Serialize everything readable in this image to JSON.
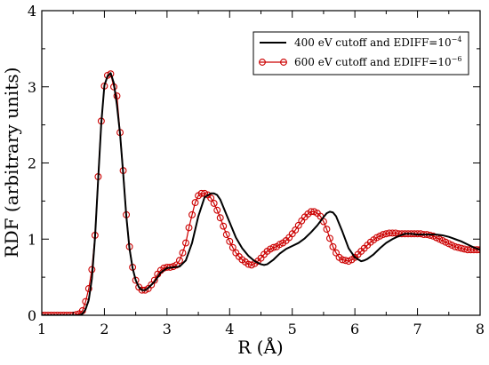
{
  "chart_data": {
    "type": "line",
    "title": "",
    "xlabel": "R (Å)",
    "ylabel": "RDF (arbitrary units)",
    "xlim": [
      1,
      8
    ],
    "ylim": [
      0,
      4
    ],
    "xticks": [
      "1",
      "2",
      "3",
      "4",
      "5",
      "6",
      "7",
      "8"
    ],
    "yticks": [
      "0",
      "1",
      "2",
      "3",
      "4"
    ],
    "grid": false,
    "legend_position": "top-right",
    "legend": {
      "items": [
        {
          "text": "400 eV cutoff and EDIFF=10",
          "sup": "−4"
        },
        {
          "text": "600 eV cutoff and EDIFF=10",
          "sup": "−6"
        }
      ]
    },
    "series": [
      {
        "name": "400 eV cutoff and EDIFF=10^-4",
        "color": "#000000",
        "style": "line",
        "x": [
          1.0,
          1.6,
          1.65,
          1.7,
          1.75,
          1.8,
          1.85,
          1.9,
          1.95,
          2.0,
          2.05,
          2.1,
          2.15,
          2.2,
          2.25,
          2.3,
          2.35,
          2.4,
          2.45,
          2.5,
          2.55,
          2.6,
          2.65,
          2.7,
          2.8,
          2.9,
          3.0,
          3.1,
          3.2,
          3.3,
          3.4,
          3.5,
          3.6,
          3.7,
          3.75,
          3.8,
          3.85,
          3.9,
          4.0,
          4.1,
          4.2,
          4.3,
          4.4,
          4.5,
          4.55,
          4.6,
          4.7,
          4.8,
          4.9,
          5.0,
          5.1,
          5.2,
          5.3,
          5.4,
          5.5,
          5.55,
          5.6,
          5.65,
          5.7,
          5.8,
          5.9,
          6.0,
          6.1,
          6.15,
          6.2,
          6.3,
          6.4,
          6.5,
          6.6,
          6.7,
          6.8,
          6.9,
          7.0,
          7.1,
          7.2,
          7.3,
          7.4,
          7.5,
          7.6,
          7.7,
          7.8,
          7.9,
          8.0
        ],
        "y": [
          0,
          0,
          0.02,
          0.08,
          0.2,
          0.48,
          1.02,
          1.78,
          2.52,
          3.02,
          3.14,
          3.18,
          3.05,
          2.76,
          2.38,
          1.86,
          1.3,
          0.88,
          0.62,
          0.46,
          0.37,
          0.33,
          0.33,
          0.36,
          0.44,
          0.56,
          0.62,
          0.63,
          0.64,
          0.72,
          0.95,
          1.3,
          1.55,
          1.6,
          1.6,
          1.58,
          1.52,
          1.42,
          1.22,
          1.02,
          0.88,
          0.78,
          0.71,
          0.67,
          0.66,
          0.67,
          0.73,
          0.81,
          0.87,
          0.91,
          0.95,
          1.01,
          1.09,
          1.18,
          1.29,
          1.34,
          1.36,
          1.35,
          1.3,
          1.1,
          0.88,
          0.76,
          0.71,
          0.72,
          0.74,
          0.8,
          0.88,
          0.95,
          1.0,
          1.04,
          1.07,
          1.07,
          1.06,
          1.06,
          1.06,
          1.06,
          1.05,
          1.03,
          1.0,
          0.97,
          0.93,
          0.89,
          0.86
        ]
      },
      {
        "name": "600 eV cutoff and EDIFF=10^-6",
        "color": "#cc0000",
        "style": "line-circle",
        "x": [
          1.0,
          1.05,
          1.1,
          1.15,
          1.2,
          1.25,
          1.3,
          1.35,
          1.4,
          1.45,
          1.5,
          1.55,
          1.6,
          1.65,
          1.7,
          1.75,
          1.8,
          1.85,
          1.9,
          1.95,
          2.0,
          2.05,
          2.1,
          2.15,
          2.2,
          2.25,
          2.3,
          2.35,
          2.4,
          2.45,
          2.5,
          2.55,
          2.6,
          2.65,
          2.7,
          2.75,
          2.8,
          2.85,
          2.9,
          2.95,
          3.0,
          3.05,
          3.1,
          3.15,
          3.2,
          3.25,
          3.3,
          3.35,
          3.4,
          3.45,
          3.5,
          3.55,
          3.6,
          3.65,
          3.7,
          3.75,
          3.8,
          3.85,
          3.9,
          3.95,
          4.0,
          4.05,
          4.1,
          4.15,
          4.2,
          4.25,
          4.3,
          4.35,
          4.4,
          4.45,
          4.5,
          4.55,
          4.6,
          4.65,
          4.7,
          4.75,
          4.8,
          4.85,
          4.9,
          4.95,
          5.0,
          5.05,
          5.1,
          5.15,
          5.2,
          5.25,
          5.3,
          5.35,
          5.4,
          5.45,
          5.5,
          5.55,
          5.6,
          5.65,
          5.7,
          5.75,
          5.8,
          5.85,
          5.9,
          5.95,
          6.0,
          6.05,
          6.1,
          6.15,
          6.2,
          6.25,
          6.3,
          6.35,
          6.4,
          6.45,
          6.5,
          6.55,
          6.6,
          6.65,
          6.7,
          6.75,
          6.8,
          6.85,
          6.9,
          6.95,
          7.0,
          7.05,
          7.1,
          7.15,
          7.2,
          7.25,
          7.3,
          7.35,
          7.4,
          7.45,
          7.5,
          7.55,
          7.6,
          7.65,
          7.7,
          7.75,
          7.8,
          7.85,
          7.9,
          7.95,
          8.0
        ],
        "y": [
          0,
          0,
          0,
          0,
          0,
          0,
          0,
          0,
          0,
          0,
          0,
          0.01,
          0.02,
          0.06,
          0.18,
          0.35,
          0.6,
          1.05,
          1.82,
          2.55,
          3.01,
          3.15,
          3.17,
          3.0,
          2.88,
          2.4,
          1.9,
          1.32,
          0.9,
          0.63,
          0.46,
          0.37,
          0.33,
          0.33,
          0.35,
          0.4,
          0.46,
          0.54,
          0.59,
          0.62,
          0.63,
          0.63,
          0.64,
          0.66,
          0.72,
          0.82,
          0.95,
          1.15,
          1.32,
          1.48,
          1.57,
          1.6,
          1.6,
          1.58,
          1.54,
          1.47,
          1.38,
          1.28,
          1.17,
          1.06,
          0.97,
          0.89,
          0.82,
          0.77,
          0.73,
          0.7,
          0.67,
          0.66,
          0.68,
          0.71,
          0.75,
          0.8,
          0.84,
          0.87,
          0.89,
          0.9,
          0.93,
          0.95,
          0.98,
          1.02,
          1.07,
          1.12,
          1.18,
          1.24,
          1.29,
          1.33,
          1.36,
          1.36,
          1.34,
          1.3,
          1.23,
          1.13,
          1.01,
          0.9,
          0.82,
          0.76,
          0.73,
          0.72,
          0.71,
          0.73,
          0.76,
          0.8,
          0.84,
          0.88,
          0.92,
          0.96,
          0.99,
          1.02,
          1.04,
          1.06,
          1.07,
          1.08,
          1.08,
          1.08,
          1.07,
          1.07,
          1.07,
          1.07,
          1.07,
          1.07,
          1.07,
          1.07,
          1.06,
          1.06,
          1.05,
          1.04,
          1.02,
          1.0,
          0.98,
          0.96,
          0.94,
          0.92,
          0.9,
          0.89,
          0.88,
          0.87,
          0.86,
          0.86,
          0.86,
          0.86,
          0.86
        ]
      }
    ]
  }
}
